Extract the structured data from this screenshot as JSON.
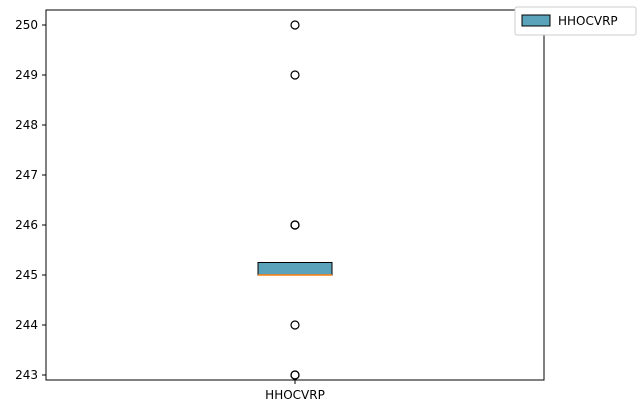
{
  "chart_data": {
    "type": "box",
    "categories": [
      "HHOCVRP"
    ],
    "series": [
      {
        "name": "HHOCVRP",
        "color": "#5ba3bb",
        "median_color": "#ff7f0e",
        "box": {
          "q1": 245.0,
          "median": 245.0,
          "q3": 245.25,
          "whisker_low": 245.0,
          "whisker_high": 245.25
        },
        "outliers": [
          250,
          249,
          246,
          246,
          244,
          243,
          243
        ]
      }
    ],
    "ylim": [
      242.9,
      250.3
    ],
    "yticks": [
      243,
      244,
      245,
      246,
      247,
      248,
      249,
      250
    ],
    "xlabel": "",
    "ylabel": "",
    "title": "",
    "grid": false,
    "legend": {
      "placement": "top-right",
      "entries": [
        "HHOCVRP"
      ]
    }
  }
}
